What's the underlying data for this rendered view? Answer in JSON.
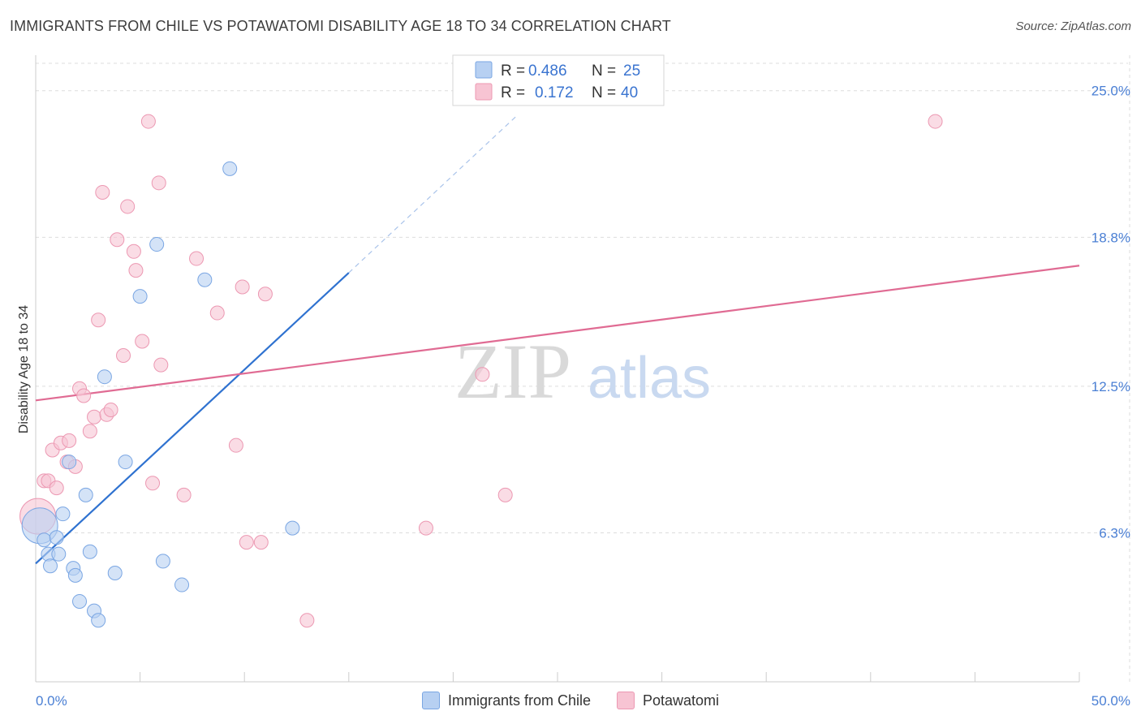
{
  "header": {
    "title": "IMMIGRANTS FROM CHILE VS POTAWATOMI DISABILITY AGE 18 TO 34 CORRELATION CHART",
    "source": "Source: ZipAtlas.com"
  },
  "colors": {
    "blue_fill": "#b7d0f2",
    "blue_stroke": "#7aa6e3",
    "blue_line": "#2f72d0",
    "pink_fill": "#f7c4d3",
    "pink_stroke": "#ec98b2",
    "pink_line": "#e06b93",
    "grid": "#dddddd",
    "tick_text": "#4a7fd4"
  },
  "legend": {
    "rows": [
      {
        "r_label": "R =",
        "r_value": "0.486",
        "n_label": "N =",
        "n_value": "25"
      },
      {
        "r_label": "R =",
        "r_value": "0.172",
        "n_label": "N =",
        "n_value": "40"
      }
    ]
  },
  "watermark": {
    "zip": "ZIP",
    "atlas": "atlas"
  },
  "bottom_legend": {
    "series1": "Immigrants from Chile",
    "series2": "Potawatomi"
  },
  "chart_data": {
    "type": "scatter",
    "title": "IMMIGRANTS FROM CHILE VS POTAWATOMI DISABILITY AGE 18 TO 34 CORRELATION CHART",
    "xlabel": "",
    "ylabel": "Disability Age 18 to 34",
    "xlim": [
      0,
      50
    ],
    "ylim": [
      0,
      26.5
    ],
    "x_tick_labels": [
      "0.0%",
      "50.0%"
    ],
    "x_tick_values": [
      0,
      50
    ],
    "y_tick_labels": [
      "6.3%",
      "12.5%",
      "18.8%",
      "25.0%"
    ],
    "y_tick_values": [
      6.3,
      12.5,
      18.8,
      25.0
    ],
    "grid": true,
    "series": [
      {
        "name": "Immigrants from Chile",
        "R": 0.486,
        "N": 25,
        "points": [
          {
            "x": 0.2,
            "y": 6.6,
            "size": "large"
          },
          {
            "x": 0.4,
            "y": 6.0
          },
          {
            "x": 0.6,
            "y": 5.4
          },
          {
            "x": 0.7,
            "y": 4.9
          },
          {
            "x": 1.0,
            "y": 6.1
          },
          {
            "x": 1.1,
            "y": 5.4
          },
          {
            "x": 1.3,
            "y": 7.1
          },
          {
            "x": 1.6,
            "y": 9.3
          },
          {
            "x": 1.8,
            "y": 4.8
          },
          {
            "x": 1.9,
            "y": 4.5
          },
          {
            "x": 2.1,
            "y": 3.4
          },
          {
            "x": 2.4,
            "y": 7.9
          },
          {
            "x": 2.6,
            "y": 5.5
          },
          {
            "x": 2.8,
            "y": 3.0
          },
          {
            "x": 3.0,
            "y": 2.6
          },
          {
            "x": 3.3,
            "y": 12.9
          },
          {
            "x": 3.8,
            "y": 4.6
          },
          {
            "x": 4.3,
            "y": 9.3
          },
          {
            "x": 5.0,
            "y": 16.3
          },
          {
            "x": 5.8,
            "y": 18.5
          },
          {
            "x": 6.1,
            "y": 5.1
          },
          {
            "x": 7.0,
            "y": 4.1
          },
          {
            "x": 8.1,
            "y": 17.0
          },
          {
            "x": 9.3,
            "y": 21.7
          },
          {
            "x": 12.3,
            "y": 6.5
          }
        ],
        "trend": {
          "x_start": 0,
          "y_start": 5.0,
          "x_end": 15.0,
          "y_end": 17.3,
          "dashed_to_x": 23.0,
          "dashed_to_y": 23.9
        }
      },
      {
        "name": "Potawatomi",
        "R": 0.172,
        "N": 40,
        "points": [
          {
            "x": 0.1,
            "y": 7.0,
            "size": "large"
          },
          {
            "x": 0.4,
            "y": 8.5
          },
          {
            "x": 0.6,
            "y": 8.5
          },
          {
            "x": 0.8,
            "y": 9.8
          },
          {
            "x": 1.0,
            "y": 8.2
          },
          {
            "x": 1.2,
            "y": 10.1
          },
          {
            "x": 1.5,
            "y": 9.3
          },
          {
            "x": 1.6,
            "y": 10.2
          },
          {
            "x": 1.9,
            "y": 9.1
          },
          {
            "x": 2.1,
            "y": 12.4
          },
          {
            "x": 2.3,
            "y": 12.1
          },
          {
            "x": 2.6,
            "y": 10.6
          },
          {
            "x": 2.8,
            "y": 11.2
          },
          {
            "x": 3.0,
            "y": 15.3
          },
          {
            "x": 3.2,
            "y": 20.7
          },
          {
            "x": 3.4,
            "y": 11.3
          },
          {
            "x": 3.6,
            "y": 11.5
          },
          {
            "x": 3.9,
            "y": 18.7
          },
          {
            "x": 4.2,
            "y": 13.8
          },
          {
            "x": 4.4,
            "y": 20.1
          },
          {
            "x": 4.7,
            "y": 18.2
          },
          {
            "x": 4.8,
            "y": 17.4
          },
          {
            "x": 5.1,
            "y": 14.4
          },
          {
            "x": 5.4,
            "y": 23.7
          },
          {
            "x": 5.6,
            "y": 8.4
          },
          {
            "x": 5.9,
            "y": 21.1
          },
          {
            "x": 6.0,
            "y": 13.4
          },
          {
            "x": 7.1,
            "y": 7.9
          },
          {
            "x": 7.7,
            "y": 17.9
          },
          {
            "x": 8.7,
            "y": 15.6
          },
          {
            "x": 9.6,
            "y": 10.0
          },
          {
            "x": 9.9,
            "y": 16.7
          },
          {
            "x": 10.1,
            "y": 5.9
          },
          {
            "x": 10.8,
            "y": 5.9
          },
          {
            "x": 11.0,
            "y": 16.4
          },
          {
            "x": 13.0,
            "y": 2.6
          },
          {
            "x": 18.7,
            "y": 6.5
          },
          {
            "x": 21.4,
            "y": 13.0
          },
          {
            "x": 22.5,
            "y": 7.9
          },
          {
            "x": 43.1,
            "y": 23.7
          }
        ],
        "trend": {
          "x_start": 0,
          "y_start": 11.9,
          "x_end": 50,
          "y_end": 17.6
        }
      }
    ]
  }
}
